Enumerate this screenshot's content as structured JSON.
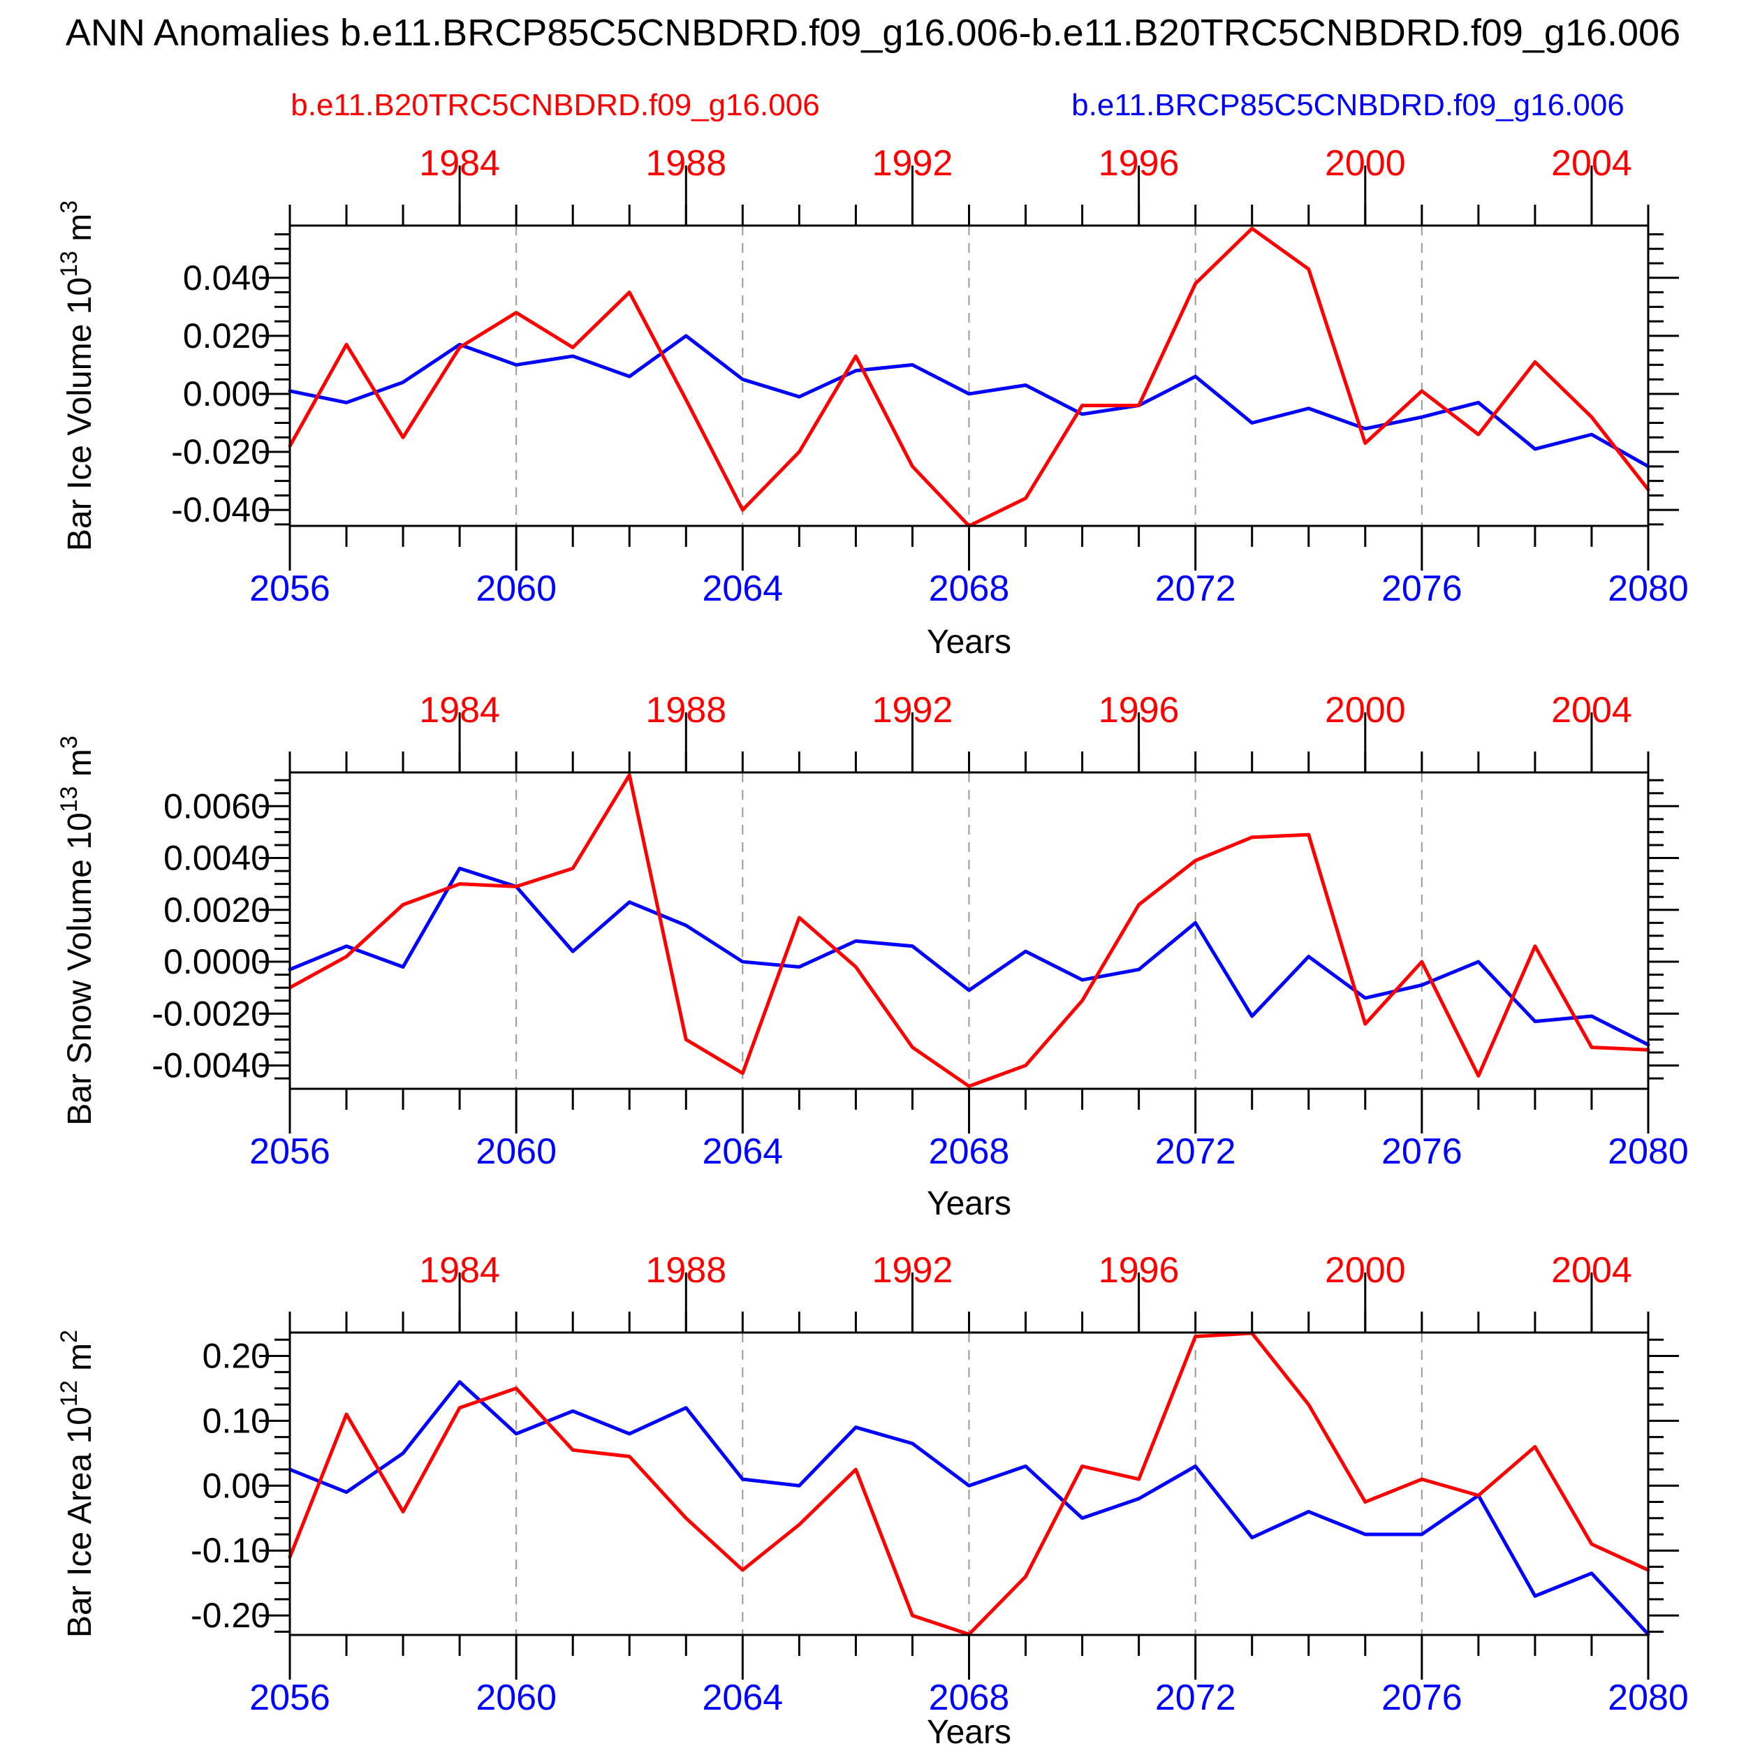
{
  "title": "ANN Anomalies b.e11.BRCP85C5CNBDRD.f09_g16.006-b.e11.B20TRC5CNBDRD.f09_g16.006",
  "legend": {
    "series1": {
      "label": "b.e11.B20TRC5CNBDRD.f09_g16.006",
      "color": "#ff0000"
    },
    "series2": {
      "label": "b.e11.BRCP85C5CNBDRD.f09_g16.006",
      "color": "#0000ff"
    }
  },
  "x_axis": {
    "label": "Years",
    "range": [
      2056,
      2080
    ],
    "minor_step": 1,
    "bottom_major_years": [
      2056,
      2060,
      2064,
      2068,
      2072,
      2076,
      2080
    ],
    "bottom_label_color": "#0000ff",
    "top_major_years": [
      1984,
      1988,
      1992,
      1996,
      2000,
      2004
    ],
    "top_years_range": [
      1981,
      2005
    ],
    "top_year_offset": 75,
    "top_label_color": "#ff0000",
    "gridline_years": [
      2060,
      2064,
      2068,
      2072,
      2076
    ]
  },
  "chart_data": [
    {
      "name": "bar-ice-volume",
      "type": "line",
      "title": "",
      "ylabel": "Bar Ice Volume 10^13 m^3",
      "ylabel_parts": [
        {
          "t": "Bar Ice Volume 10"
        },
        {
          "t": "13",
          "sup": true
        },
        {
          "t": " m"
        },
        {
          "t": "3",
          "sup": true
        }
      ],
      "ylim": [
        -0.0455,
        0.058
      ],
      "yminor_step": 0.005,
      "yticks": [
        {
          "v": 0.04,
          "label": "0.040"
        },
        {
          "v": 0.02,
          "label": "0.020"
        },
        {
          "v": 0.0,
          "label": "0.000"
        },
        {
          "v": -0.02,
          "label": "-0.020"
        },
        {
          "v": -0.04,
          "label": "-0.040"
        }
      ],
      "x": [
        2056,
        2057,
        2058,
        2059,
        2060,
        2061,
        2062,
        2063,
        2064,
        2065,
        2066,
        2067,
        2068,
        2069,
        2070,
        2071,
        2072,
        2073,
        2074,
        2075,
        2076,
        2077,
        2078,
        2079,
        2080
      ],
      "series": [
        {
          "name": "b.e11.B20TRC5CNBDRD.f09_g16.006",
          "color": "#ff0000",
          "represents_years": [
            1981,
            2005
          ],
          "values": [
            -0.018,
            0.017,
            -0.015,
            0.016,
            0.028,
            0.016,
            0.035,
            -0.002,
            -0.04,
            -0.02,
            0.013,
            -0.025,
            -0.0455,
            -0.036,
            -0.004,
            -0.004,
            0.038,
            0.057,
            0.043,
            -0.017,
            0.001,
            -0.014,
            0.011,
            -0.008,
            -0.033
          ]
        },
        {
          "name": "b.e11.BRCP85C5CNBDRD.f09_g16.006",
          "color": "#0000ff",
          "represents_years": [
            2056,
            2080
          ],
          "values": [
            0.001,
            -0.003,
            0.004,
            0.017,
            0.01,
            0.013,
            0.006,
            0.02,
            0.005,
            -0.001,
            0.008,
            0.01,
            0.0,
            0.003,
            -0.007,
            -0.004,
            0.006,
            -0.01,
            -0.005,
            -0.012,
            -0.008,
            -0.003,
            -0.019,
            -0.014,
            -0.025
          ]
        }
      ]
    },
    {
      "name": "bar-snow-volume",
      "type": "line",
      "title": "",
      "ylabel": "Bar Snow Volume 10^13 m^3",
      "ylabel_parts": [
        {
          "t": "Bar Snow Volume 10"
        },
        {
          "t": "13",
          "sup": true
        },
        {
          "t": " m"
        },
        {
          "t": "3",
          "sup": true
        }
      ],
      "ylim": [
        -0.0049,
        0.0073
      ],
      "yminor_step": 0.0005,
      "yticks": [
        {
          "v": 0.006,
          "label": "0.0060"
        },
        {
          "v": 0.004,
          "label": "0.0040"
        },
        {
          "v": 0.002,
          "label": "0.0020"
        },
        {
          "v": 0.0,
          "label": "0.0000"
        },
        {
          "v": -0.002,
          "label": "-0.0020"
        },
        {
          "v": -0.004,
          "label": "-0.0040"
        }
      ],
      "x": [
        2056,
        2057,
        2058,
        2059,
        2060,
        2061,
        2062,
        2063,
        2064,
        2065,
        2066,
        2067,
        2068,
        2069,
        2070,
        2071,
        2072,
        2073,
        2074,
        2075,
        2076,
        2077,
        2078,
        2079,
        2080
      ],
      "series": [
        {
          "name": "b.e11.B20TRC5CNBDRD.f09_g16.006",
          "color": "#ff0000",
          "represents_years": [
            1981,
            2005
          ],
          "values": [
            -0.001,
            0.0002,
            0.0022,
            0.003,
            0.0029,
            0.0036,
            0.0072,
            -0.003,
            -0.0043,
            0.0017,
            -0.0002,
            -0.0033,
            -0.0048,
            -0.004,
            -0.0015,
            0.0022,
            0.0039,
            0.0048,
            0.0049,
            -0.0024,
            0.0,
            -0.0044,
            0.0006,
            -0.0033,
            -0.0034
          ]
        },
        {
          "name": "b.e11.BRCP85C5CNBDRD.f09_g16.006",
          "color": "#0000ff",
          "represents_years": [
            2056,
            2080
          ],
          "values": [
            -0.0003,
            0.0006,
            -0.0002,
            0.0036,
            0.0029,
            0.0004,
            0.0023,
            0.0014,
            0.0,
            -0.0002,
            0.0008,
            0.0006,
            -0.0011,
            0.0004,
            -0.0007,
            -0.0003,
            0.0015,
            -0.0021,
            0.0002,
            -0.0014,
            -0.0009,
            0.0,
            -0.0023,
            -0.0021,
            -0.0032
          ]
        }
      ]
    },
    {
      "name": "bar-ice-area",
      "type": "line",
      "title": "",
      "ylabel": "Bar Ice Area 10^12 m^2",
      "ylabel_parts": [
        {
          "t": "Bar Ice Area 10"
        },
        {
          "t": "12",
          "sup": true
        },
        {
          "t": " m"
        },
        {
          "t": "2",
          "sup": true
        }
      ],
      "ylim": [
        -0.23,
        0.236
      ],
      "yminor_step": 0.025,
      "yticks": [
        {
          "v": 0.2,
          "label": "0.20"
        },
        {
          "v": 0.1,
          "label": "0.10"
        },
        {
          "v": 0.0,
          "label": "0.00"
        },
        {
          "v": -0.1,
          "label": "-0.10"
        },
        {
          "v": -0.2,
          "label": "-0.20"
        }
      ],
      "x": [
        2056,
        2057,
        2058,
        2059,
        2060,
        2061,
        2062,
        2063,
        2064,
        2065,
        2066,
        2067,
        2068,
        2069,
        2070,
        2071,
        2072,
        2073,
        2074,
        2075,
        2076,
        2077,
        2078,
        2079,
        2080
      ],
      "series": [
        {
          "name": "b.e11.B20TRC5CNBDRD.f09_g16.006",
          "color": "#ff0000",
          "represents_years": [
            1981,
            2005
          ],
          "values": [
            -0.11,
            0.11,
            -0.04,
            0.12,
            0.15,
            0.055,
            0.045,
            -0.05,
            -0.13,
            -0.06,
            0.025,
            -0.2,
            -0.229,
            -0.14,
            0.03,
            0.01,
            0.23,
            0.235,
            0.125,
            -0.025,
            0.01,
            -0.015,
            0.06,
            -0.09,
            -0.13
          ]
        },
        {
          "name": "b.e11.BRCP85C5CNBDRD.f09_g16.006",
          "color": "#0000ff",
          "represents_years": [
            2056,
            2080
          ],
          "values": [
            0.025,
            -0.01,
            0.05,
            0.16,
            0.08,
            0.115,
            0.08,
            0.12,
            0.01,
            0.0,
            0.09,
            0.065,
            0.0,
            0.03,
            -0.05,
            -0.02,
            0.03,
            -0.08,
            -0.04,
            -0.075,
            -0.075,
            -0.015,
            -0.17,
            -0.135,
            -0.229
          ]
        }
      ]
    }
  ]
}
